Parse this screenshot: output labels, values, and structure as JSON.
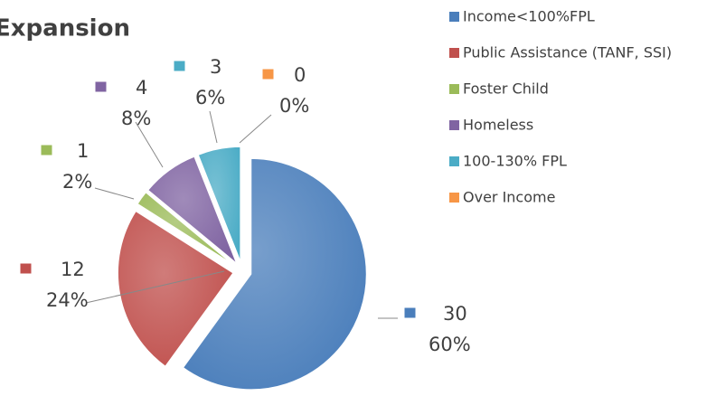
{
  "chart_data": {
    "type": "pie",
    "title": "Expansion",
    "categories": [
      "Income<100%FPL",
      "Public Assistance (TANF, SSI)",
      "Foster Child",
      "Homeless",
      "100-130% FPL",
      "Over Income"
    ],
    "values": [
      30,
      12,
      1,
      4,
      3,
      0
    ],
    "percent_labels": [
      "60%",
      "24%",
      "2%",
      "8%",
      "6%",
      "0%"
    ],
    "colors": [
      "#4a7ebb",
      "#c0504d",
      "#9bbb59",
      "#8064a2",
      "#4bacc6",
      "#f79646"
    ],
    "legend": "right"
  }
}
